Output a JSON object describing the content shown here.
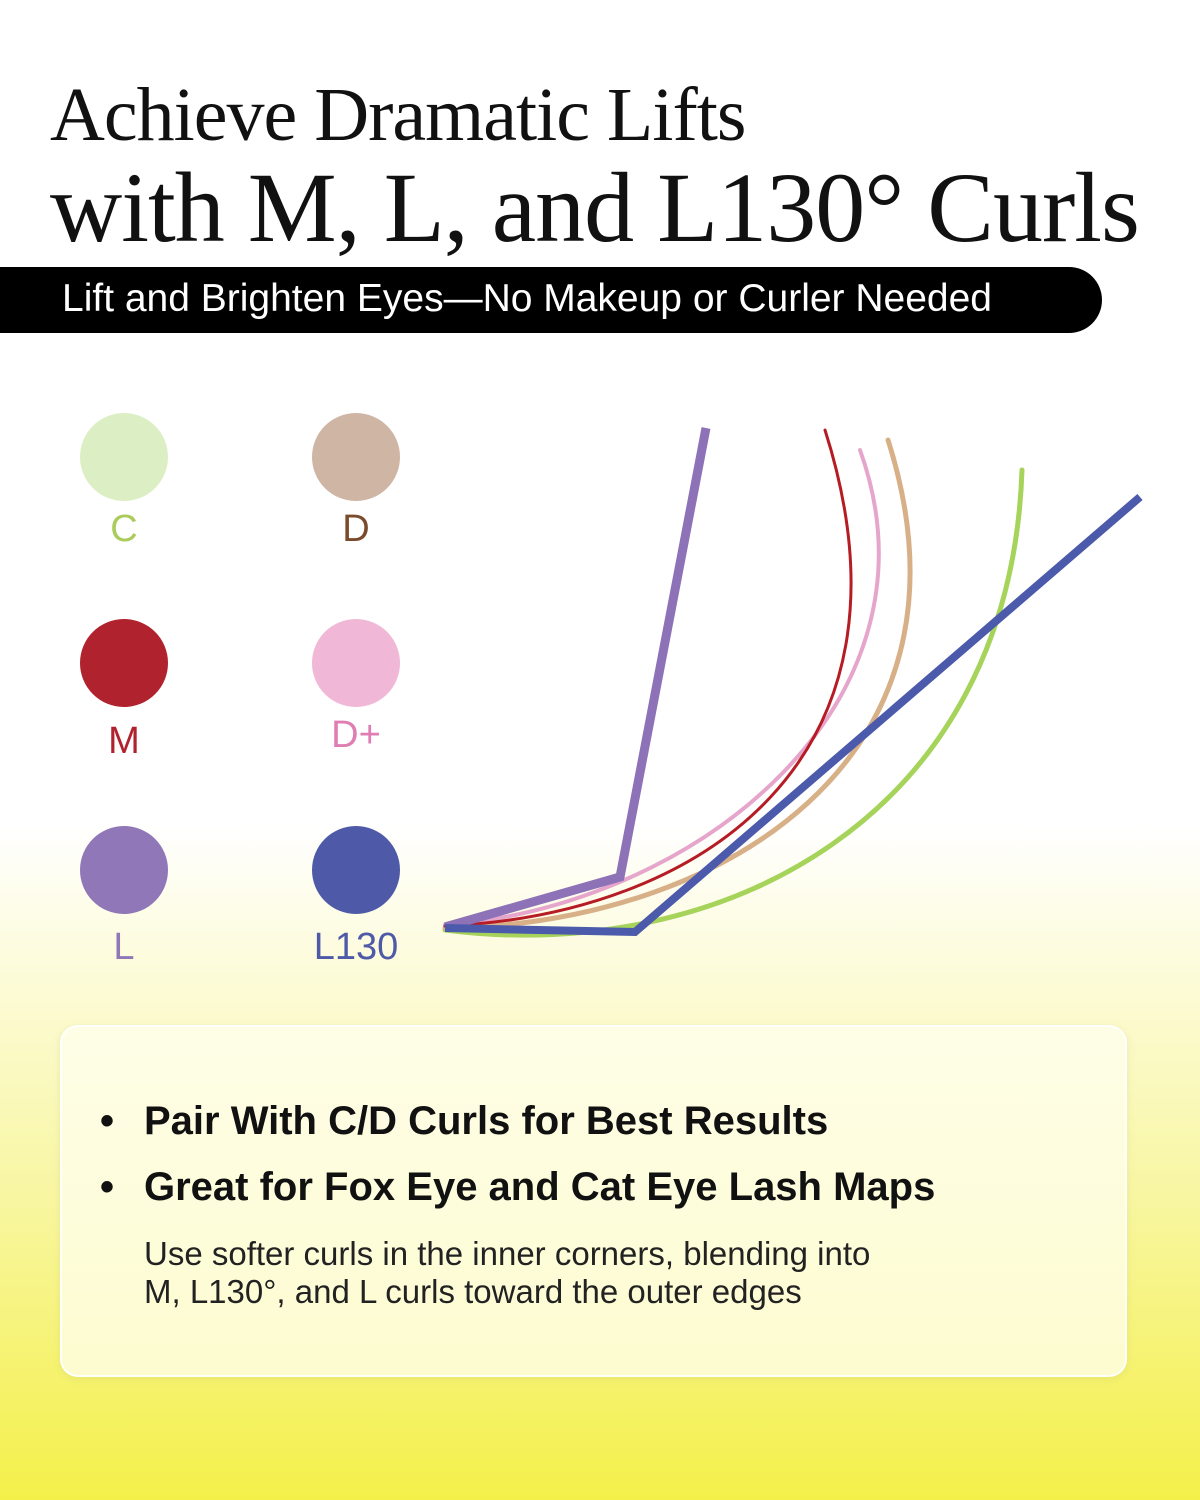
{
  "title": {
    "line1": "Achieve Dramatic Lifts",
    "line2": "with M, L, and L130° Curls"
  },
  "banner": "Lift and Brighten Eyes—No Makeup or Curler Needed",
  "curls": [
    {
      "label": "C",
      "color": "#dcefc4",
      "label_color": "#a9cc5c",
      "curve_color": "#a6d35a"
    },
    {
      "label": "D",
      "color": "#cfb5a4",
      "label_color": "#7a4b2c",
      "curve_color": "#d8b088"
    },
    {
      "label": "M",
      "color": "#b0222e",
      "label_color": "#b0222e",
      "curve_color": "#b51c24"
    },
    {
      "label": "D+",
      "color": "#f0b8d6",
      "label_color": "#e07eb4",
      "curve_color": "#e6a6cc"
    },
    {
      "label": "L",
      "color": "#9077b8",
      "label_color": "#9077b8",
      "curve_color": "#8e72b8"
    },
    {
      "label": "L130",
      "color": "#4e5aa8",
      "label_color": "#4e5aa8",
      "curve_color": "#4c5aac"
    }
  ],
  "card": {
    "bullets": [
      "Pair With C/D Curls for Best Results",
      "Great for Fox Eye and Cat Eye Lash Maps"
    ],
    "bullet_symbol": "•",
    "note_line1": "Use softer curls in the inner corners, blending into",
    "note_line2": "M, L130°, and L curls toward the outer edges"
  }
}
